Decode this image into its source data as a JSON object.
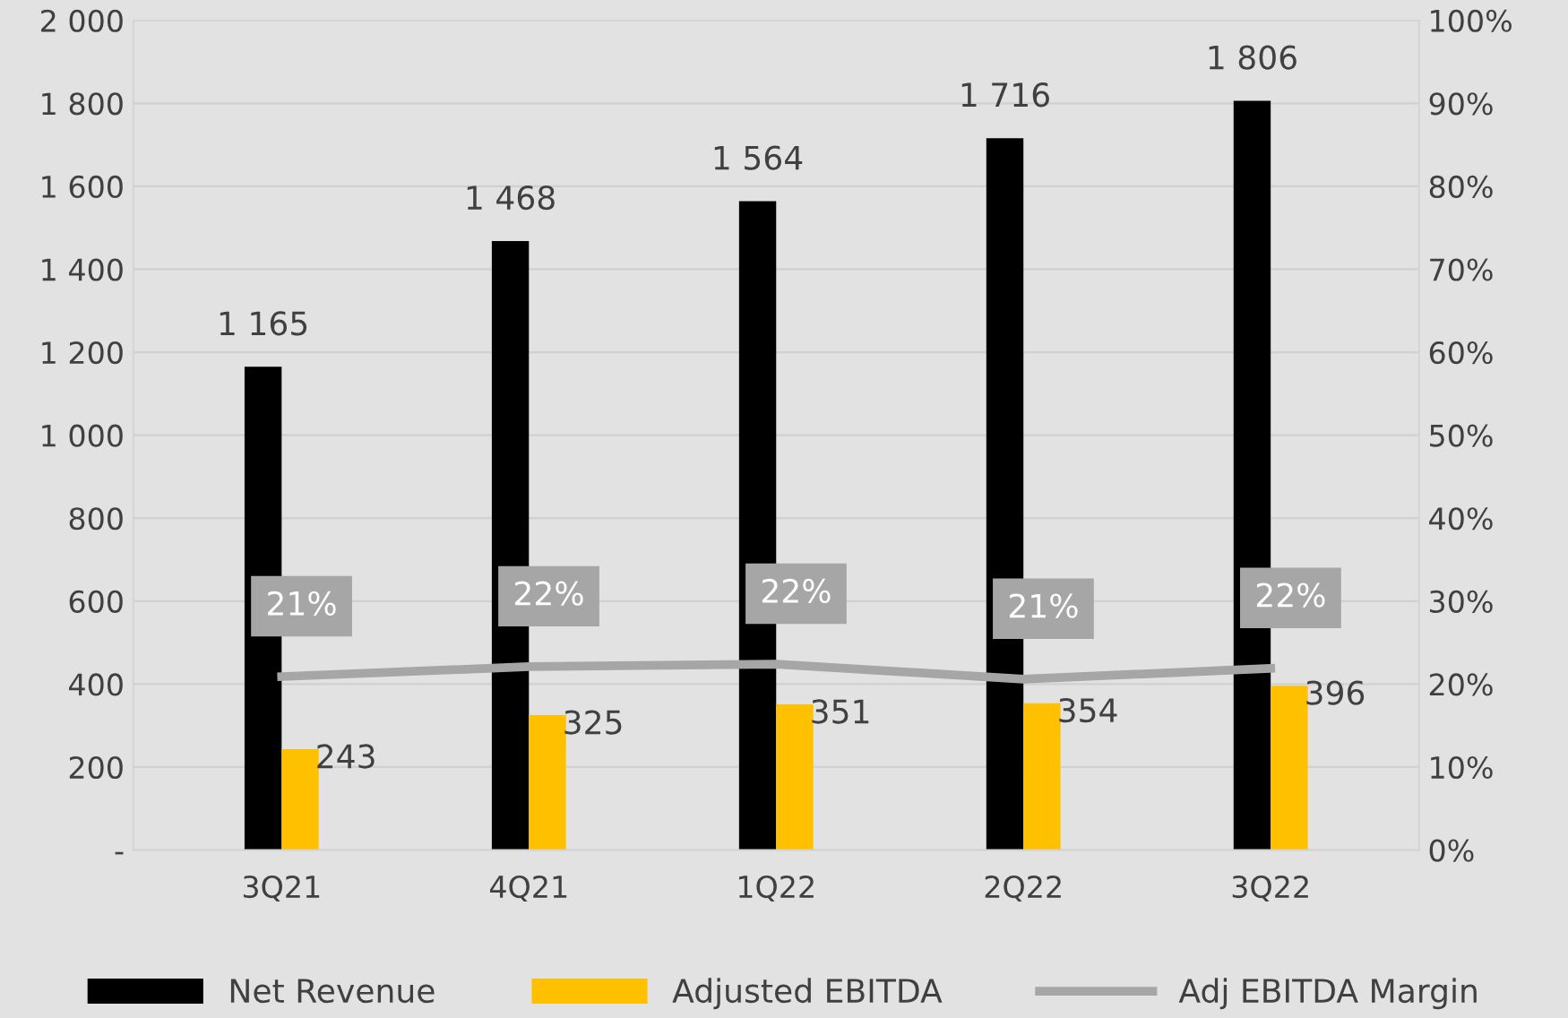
{
  "chart_data": {
    "type": "bar",
    "categories": [
      "3Q21",
      "4Q21",
      "1Q22",
      "2Q22",
      "3Q22"
    ],
    "series": [
      {
        "name": "Net Revenue",
        "color": "#000000",
        "values": [
          1165,
          1468,
          1564,
          1716,
          1806
        ],
        "value_labels": [
          "1 165",
          "1 468",
          "1 564",
          "1 716",
          "1 806"
        ]
      },
      {
        "name": "Adjusted EBITDA",
        "color": "#ffc000",
        "values": [
          243,
          325,
          351,
          354,
          396
        ],
        "value_labels": [
          "243",
          "325",
          "351",
          "354",
          "396"
        ]
      },
      {
        "name": "Adj EBITDA Margin",
        "type": "line",
        "axis": "y2",
        "color": "#a6a6a6",
        "values": [
          20.9,
          22.1,
          22.4,
          20.6,
          21.9
        ],
        "value_labels": [
          "21%",
          "22%",
          "22%",
          "21%",
          "22%"
        ]
      }
    ],
    "ylim": [
      0,
      2000
    ],
    "yticks": [
      {
        "value": 0,
        "label": "-"
      },
      {
        "value": 200,
        "label": "200"
      },
      {
        "value": 400,
        "label": "400"
      },
      {
        "value": 600,
        "label": "600"
      },
      {
        "value": 800,
        "label": "800"
      },
      {
        "value": 1000,
        "label": "1 000"
      },
      {
        "value": 1200,
        "label": "1 200"
      },
      {
        "value": 1400,
        "label": "1 400"
      },
      {
        "value": 1600,
        "label": "1 600"
      },
      {
        "value": 1800,
        "label": "1 800"
      },
      {
        "value": 2000,
        "label": "2 000"
      }
    ],
    "y2lim": [
      0,
      100
    ],
    "y2ticks": [
      {
        "value": 0,
        "label": "0%"
      },
      {
        "value": 10,
        "label": "10%"
      },
      {
        "value": 20,
        "label": "20%"
      },
      {
        "value": 30,
        "label": "30%"
      },
      {
        "value": 40,
        "label": "40%"
      },
      {
        "value": 50,
        "label": "50%"
      },
      {
        "value": 60,
        "label": "60%"
      },
      {
        "value": 70,
        "label": "70%"
      },
      {
        "value": 80,
        "label": "80%"
      },
      {
        "value": 90,
        "label": "90%"
      },
      {
        "value": 100,
        "label": "100%"
      }
    ],
    "grid": "y",
    "legend": "bottom",
    "marker": "none"
  }
}
